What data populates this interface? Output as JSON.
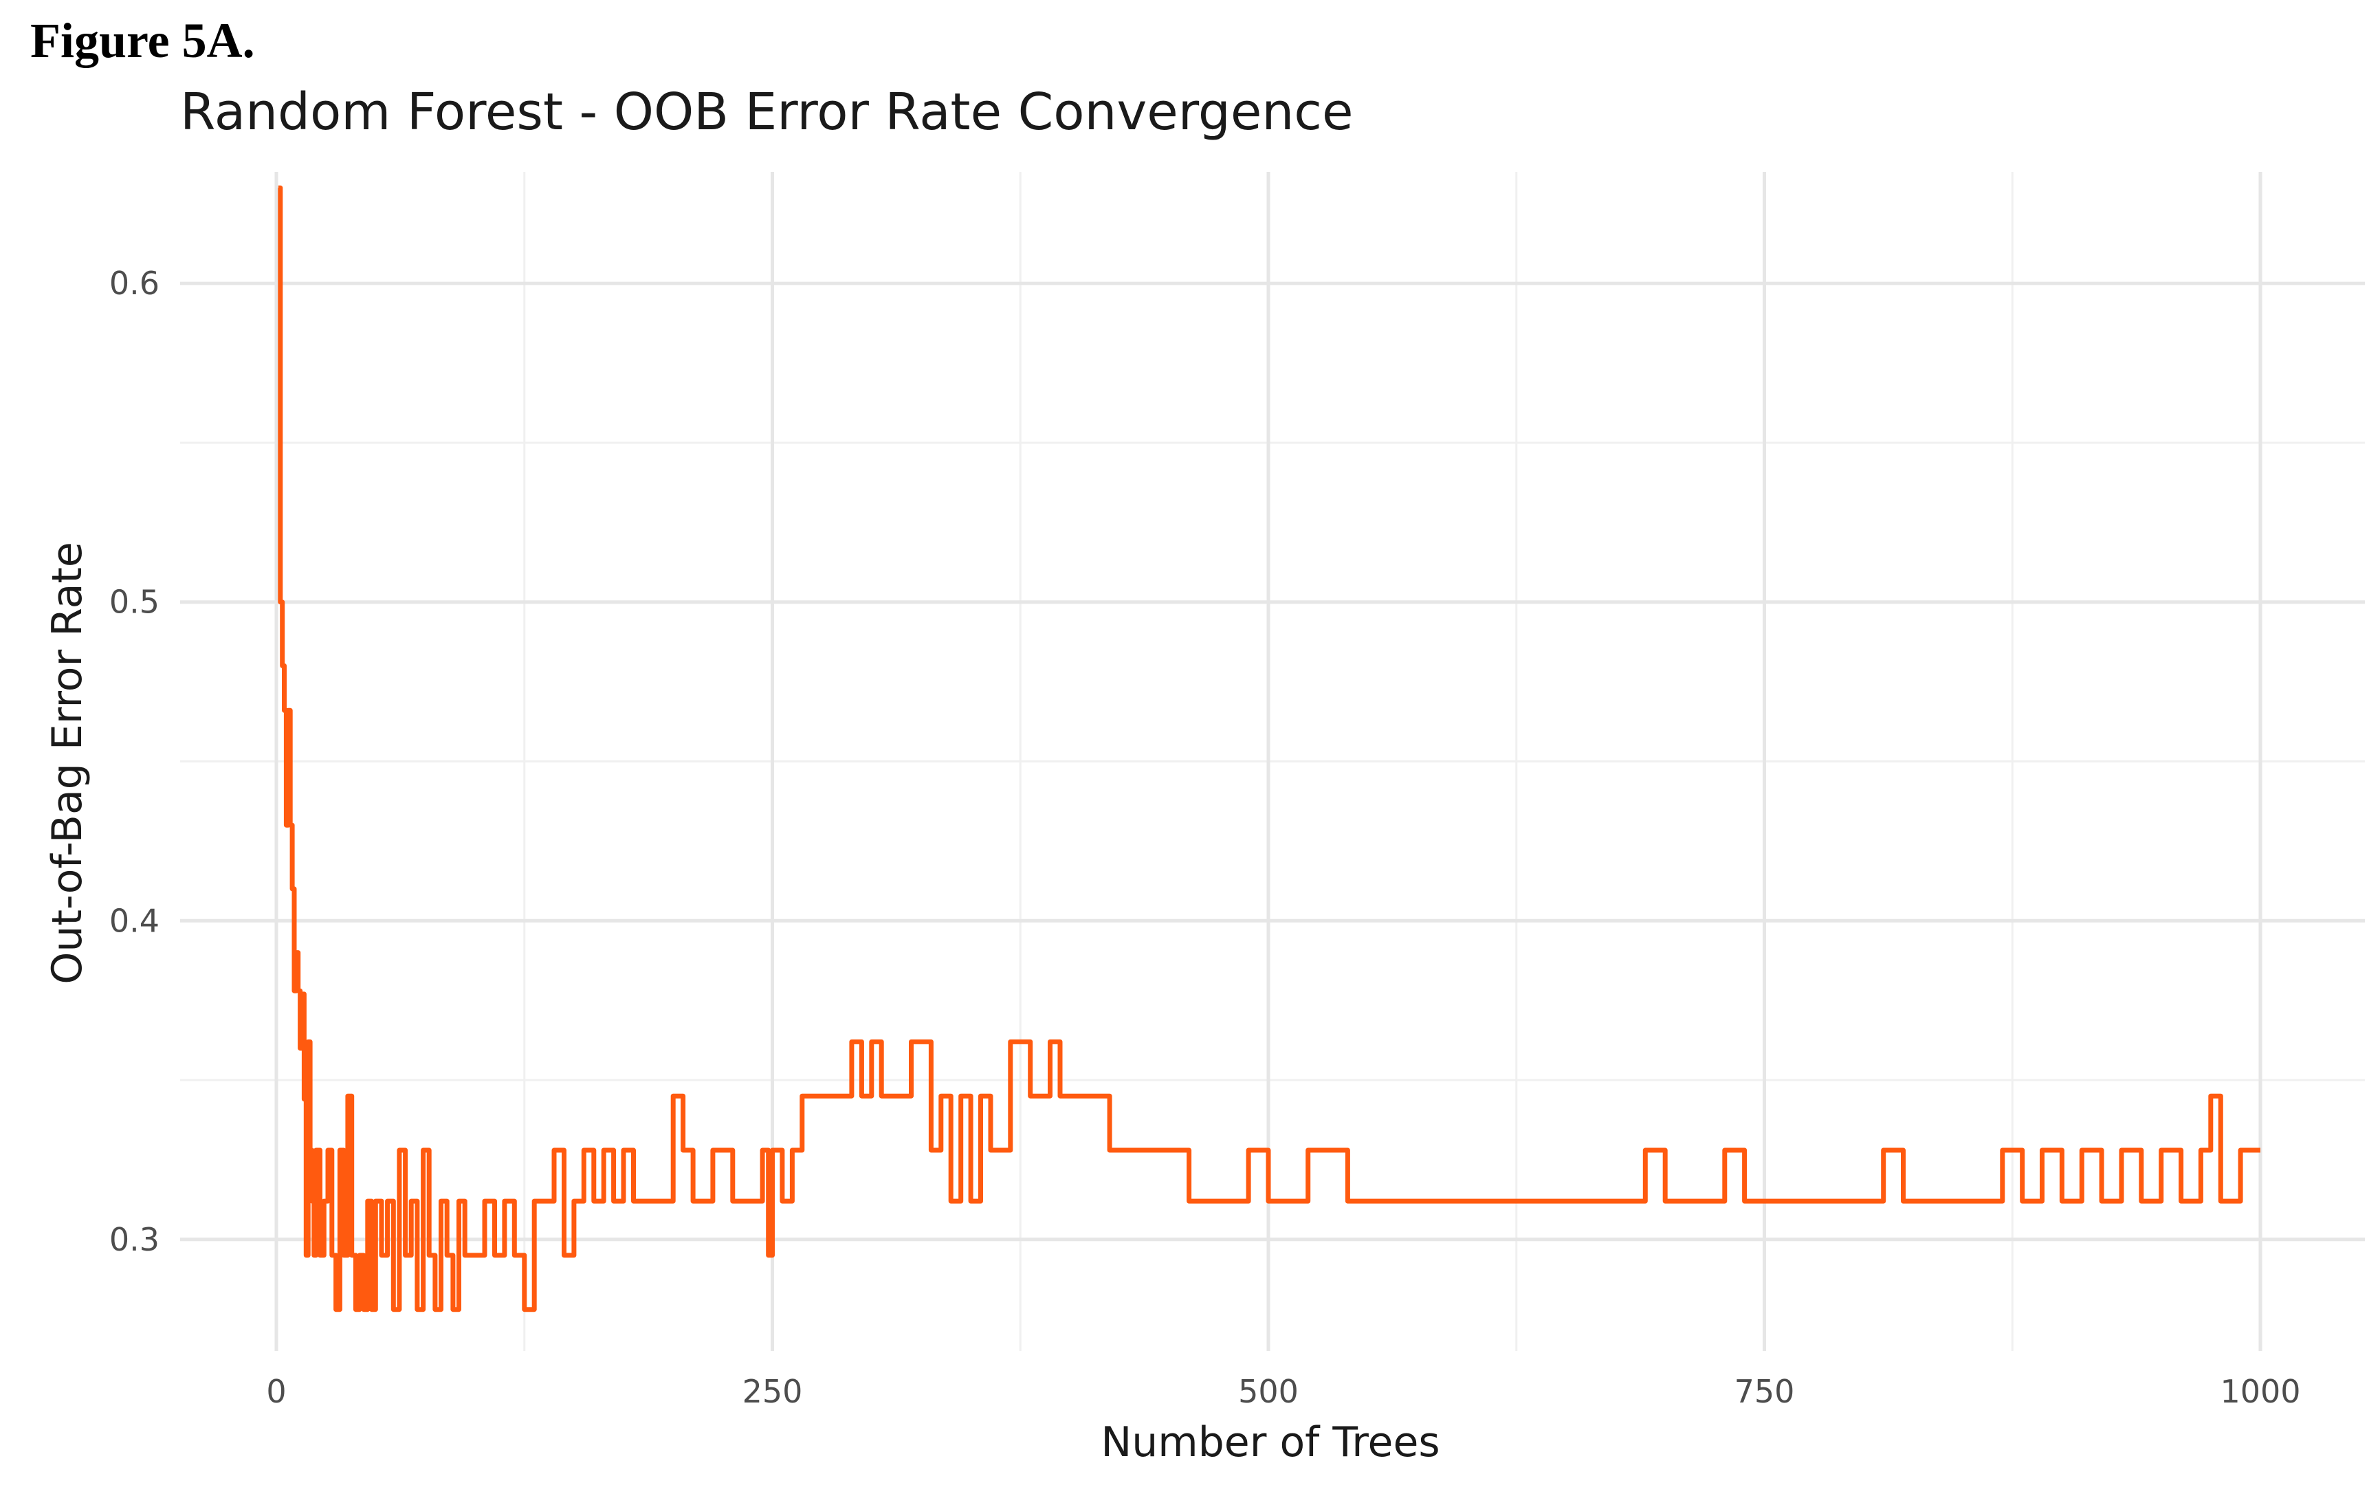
{
  "figure_label": "Figure 5A.",
  "chart_data": {
    "type": "line",
    "title": "Random Forest - OOB Error Rate Convergence",
    "xlabel": "Number of Trees",
    "ylabel": "Out-of-Bag Error Rate",
    "xlim": [
      0,
      1000
    ],
    "ylim": [
      0.265,
      0.635
    ],
    "xticks": [
      0,
      250,
      500,
      750,
      1000
    ],
    "xtick_labels": [
      "0",
      "250",
      "500",
      "750",
      "1000"
    ],
    "yticks": [
      0.3,
      0.4,
      0.5,
      0.6
    ],
    "ytick_labels": [
      "0.3",
      "0.4",
      "0.5",
      "0.6"
    ],
    "grid": true,
    "line_color": "#ff5a0f",
    "series": [
      {
        "x": [
          1,
          2,
          3,
          4,
          5,
          6,
          7,
          8,
          9,
          10,
          11,
          12,
          13,
          14,
          15,
          16,
          17,
          18,
          19,
          20,
          22,
          24,
          26,
          28,
          30,
          32,
          34,
          36,
          38,
          40,
          42,
          44,
          46,
          48,
          50,
          53,
          56,
          59,
          62,
          65,
          68,
          71,
          74,
          77,
          80,
          83,
          86,
          89,
          92,
          95,
          98,
          101,
          105,
          110,
          115,
          120,
          125,
          130,
          135,
          140,
          145,
          150,
          155,
          160,
          165,
          170,
          175,
          180,
          190,
          200,
          205,
          210,
          220,
          230,
          240,
          245,
          248,
          250,
          255,
          260,
          265,
          280,
          290,
          295,
          300,
          305,
          310,
          320,
          330,
          335,
          340,
          345,
          350,
          355,
          360,
          370,
          380,
          390,
          395,
          400,
          410,
          420,
          450,
          460,
          465,
          480,
          490,
          500,
          520,
          530,
          540,
          560,
          600,
          680,
          690,
          700,
          720,
          730,
          740,
          800,
          810,
          820,
          830,
          860,
          870,
          880,
          890,
          900,
          910,
          920,
          930,
          940,
          950,
          960,
          970,
          975,
          980,
          990,
          1000
        ],
        "y": [
          0.63,
          0.5,
          0.48,
          0.466,
          0.43,
          0.466,
          0.43,
          0.41,
          0.378,
          0.39,
          0.378,
          0.36,
          0.377,
          0.344,
          0.295,
          0.362,
          0.328,
          0.312,
          0.295,
          0.328,
          0.295,
          0.312,
          0.328,
          0.295,
          0.278,
          0.328,
          0.295,
          0.345,
          0.295,
          0.278,
          0.295,
          0.278,
          0.312,
          0.278,
          0.312,
          0.295,
          0.312,
          0.278,
          0.328,
          0.295,
          0.312,
          0.278,
          0.328,
          0.295,
          0.278,
          0.312,
          0.295,
          0.278,
          0.312,
          0.295,
          0.295,
          0.295,
          0.312,
          0.295,
          0.312,
          0.295,
          0.278,
          0.312,
          0.312,
          0.328,
          0.295,
          0.312,
          0.328,
          0.312,
          0.328,
          0.312,
          0.328,
          0.312,
          0.312,
          0.345,
          0.328,
          0.312,
          0.328,
          0.312,
          0.312,
          0.328,
          0.295,
          0.328,
          0.312,
          0.328,
          0.345,
          0.345,
          0.362,
          0.345,
          0.362,
          0.345,
          0.345,
          0.362,
          0.328,
          0.345,
          0.312,
          0.345,
          0.312,
          0.345,
          0.328,
          0.362,
          0.345,
          0.362,
          0.345,
          0.345,
          0.345,
          0.328,
          0.328,
          0.312,
          0.312,
          0.312,
          0.328,
          0.312,
          0.328,
          0.328,
          0.312,
          0.312,
          0.312,
          0.312,
          0.328,
          0.312,
          0.312,
          0.328,
          0.312,
          0.312,
          0.328,
          0.312,
          0.312,
          0.312,
          0.328,
          0.312,
          0.328,
          0.312,
          0.328,
          0.312,
          0.328,
          0.312,
          0.328,
          0.312,
          0.328,
          0.345,
          0.312,
          0.328,
          0.328
        ]
      }
    ]
  }
}
